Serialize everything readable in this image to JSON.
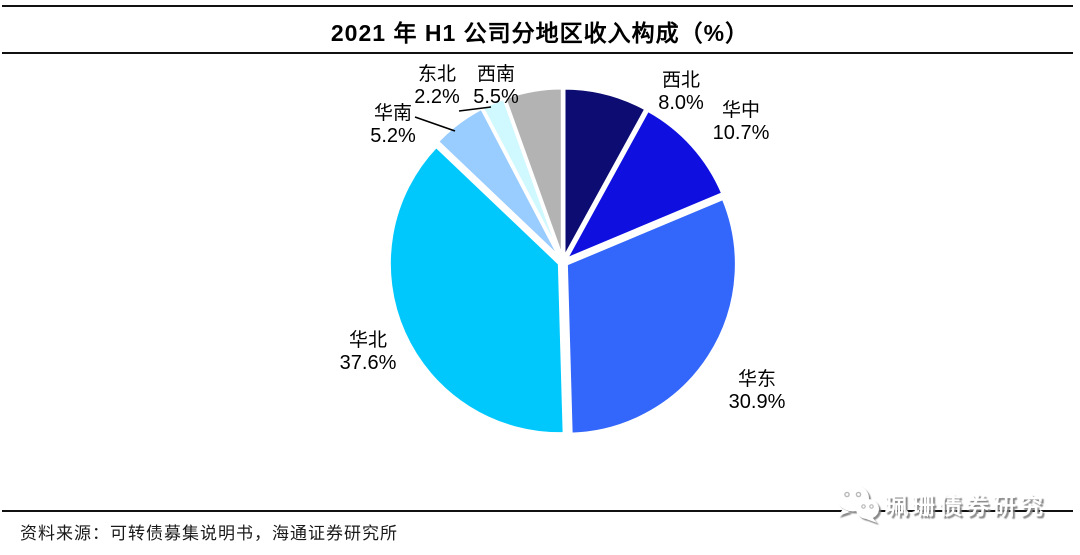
{
  "title": "2021 年 H1 公司分地区收入构成（%）",
  "source_note": "资料来源：可转债募集说明书，海通证券研究所",
  "watermark": {
    "icon": "wechat-icon",
    "text": "珮珊债券研究"
  },
  "chart_data": {
    "type": "pie",
    "title": "2021 年 H1 公司分地区收入构成（%）",
    "unit": "%",
    "start_angle_deg": 0,
    "direction": "clockwise",
    "legend_position": "none",
    "labels_on_chart": true,
    "slices": [
      {
        "label": "西北",
        "value": 8.0,
        "color": "#0C0C72"
      },
      {
        "label": "华中",
        "value": 10.7,
        "color": "#0F10E0"
      },
      {
        "label": "华东",
        "value": 30.9,
        "color": "#3366FA"
      },
      {
        "label": "华北",
        "value": 37.6,
        "color": "#00C8FD"
      },
      {
        "label": "华南",
        "value": 5.2,
        "color": "#99CCFF"
      },
      {
        "label": "东北",
        "value": 2.2,
        "color": "#CFF8FF"
      },
      {
        "label": "西南",
        "value": 5.5,
        "color": "#B3B3B3"
      }
    ]
  }
}
